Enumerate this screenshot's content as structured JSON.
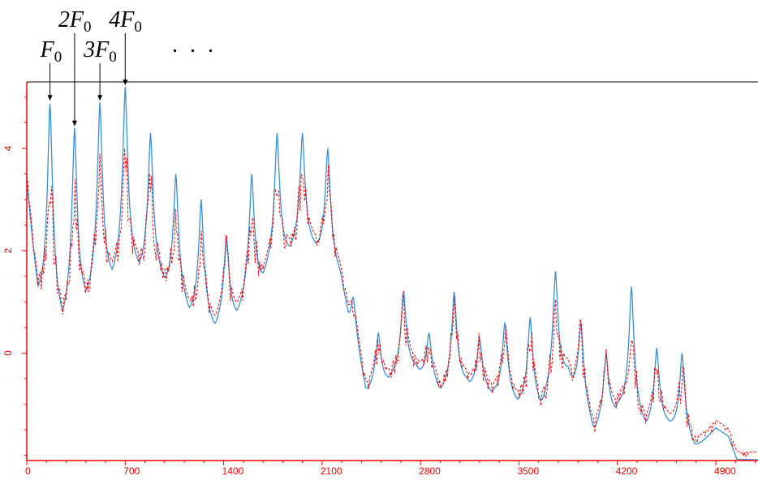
{
  "chart_data": {
    "type": "line",
    "title": "",
    "xlabel": "",
    "ylabel": "",
    "xlim": [
      0,
      5200
    ],
    "ylim": [
      -2.1,
      5.3
    ],
    "grid": false,
    "colors": {
      "axis": "#ff0000",
      "blue_series": "#3a8fd8",
      "red_series": "#ff0000",
      "annotation": "#000000"
    },
    "x_ticks": [
      {
        "value": 0,
        "label": "0"
      },
      {
        "value": 700,
        "label": "700"
      },
      {
        "value": 1400,
        "label": "1400"
      },
      {
        "value": 2100,
        "label": "2100"
      },
      {
        "value": 2800,
        "label": "2800"
      },
      {
        "value": 3500,
        "label": "3500"
      },
      {
        "value": 4200,
        "label": "4200"
      },
      {
        "value": 4900,
        "label": "4900"
      }
    ],
    "y_ticks": [
      {
        "value": 0,
        "label": "0"
      },
      {
        "value": 2,
        "label": "2"
      },
      {
        "value": 4,
        "label": "4"
      }
    ],
    "annotations": [
      {
        "label": "F",
        "sub": "0",
        "x": 165
      },
      {
        "label": "2F",
        "sub": "0",
        "x": 340
      },
      {
        "label": "3F",
        "sub": "0",
        "x": 520
      },
      {
        "label": "4F",
        "sub": "0",
        "x": 700
      }
    ],
    "ellipsis": ". . .",
    "blue_peaks": [
      {
        "x": 165,
        "y": 4.9
      },
      {
        "x": 340,
        "y": 4.4
      },
      {
        "x": 520,
        "y": 4.9
      },
      {
        "x": 700,
        "y": 5.2
      },
      {
        "x": 880,
        "y": 4.3
      },
      {
        "x": 1060,
        "y": 3.5
      },
      {
        "x": 1240,
        "y": 3.0
      },
      {
        "x": 1420,
        "y": 2.3
      },
      {
        "x": 1600,
        "y": 3.5
      },
      {
        "x": 1780,
        "y": 4.3
      },
      {
        "x": 1960,
        "y": 4.3
      },
      {
        "x": 2140,
        "y": 4.0
      },
      {
        "x": 2320,
        "y": 1.1
      },
      {
        "x": 2500,
        "y": 0.4
      },
      {
        "x": 2680,
        "y": 1.2
      },
      {
        "x": 2860,
        "y": 0.4
      },
      {
        "x": 3040,
        "y": 1.2
      },
      {
        "x": 3220,
        "y": 0.3
      },
      {
        "x": 3400,
        "y": 0.6
      },
      {
        "x": 3580,
        "y": 0.7
      },
      {
        "x": 3760,
        "y": 1.6
      },
      {
        "x": 3940,
        "y": 0.6
      },
      {
        "x": 4120,
        "y": 0.0
      },
      {
        "x": 4300,
        "y": 1.3
      },
      {
        "x": 4480,
        "y": 0.1
      },
      {
        "x": 4660,
        "y": 0.0
      }
    ],
    "blue_valleys": [
      {
        "x": 0,
        "y": 3.3
      },
      {
        "x": 80,
        "y": 0.8
      },
      {
        "x": 250,
        "y": 0.3
      },
      {
        "x": 430,
        "y": 0.8
      },
      {
        "x": 610,
        "y": 1.2
      },
      {
        "x": 790,
        "y": 1.4
      },
      {
        "x": 970,
        "y": 1.2
      },
      {
        "x": 1150,
        "y": 0.6
      },
      {
        "x": 1330,
        "y": 0.3
      },
      {
        "x": 1510,
        "y": 0.6
      },
      {
        "x": 1690,
        "y": 1.3
      },
      {
        "x": 1870,
        "y": 1.8
      },
      {
        "x": 2050,
        "y": 1.9
      },
      {
        "x": 2230,
        "y": 1.3
      },
      {
        "x": 2410,
        "y": -0.9
      },
      {
        "x": 2590,
        "y": -0.6
      },
      {
        "x": 2770,
        "y": -0.4
      },
      {
        "x": 2950,
        "y": -0.9
      },
      {
        "x": 3130,
        "y": -0.7
      },
      {
        "x": 3310,
        "y": -0.9
      },
      {
        "x": 3490,
        "y": -1.1
      },
      {
        "x": 3670,
        "y": -1.2
      },
      {
        "x": 3850,
        "y": -0.5
      },
      {
        "x": 4030,
        "y": -1.7
      },
      {
        "x": 4210,
        "y": -1.2
      },
      {
        "x": 4390,
        "y": -1.6
      },
      {
        "x": 4570,
        "y": -1.5
      },
      {
        "x": 4750,
        "y": -2.0
      },
      {
        "x": 4900,
        "y": -1.5
      },
      {
        "x": 4990,
        "y": -1.65
      },
      {
        "x": 5050,
        "y": -2.1
      },
      {
        "x": 5200,
        "y": -2.1
      }
    ]
  }
}
